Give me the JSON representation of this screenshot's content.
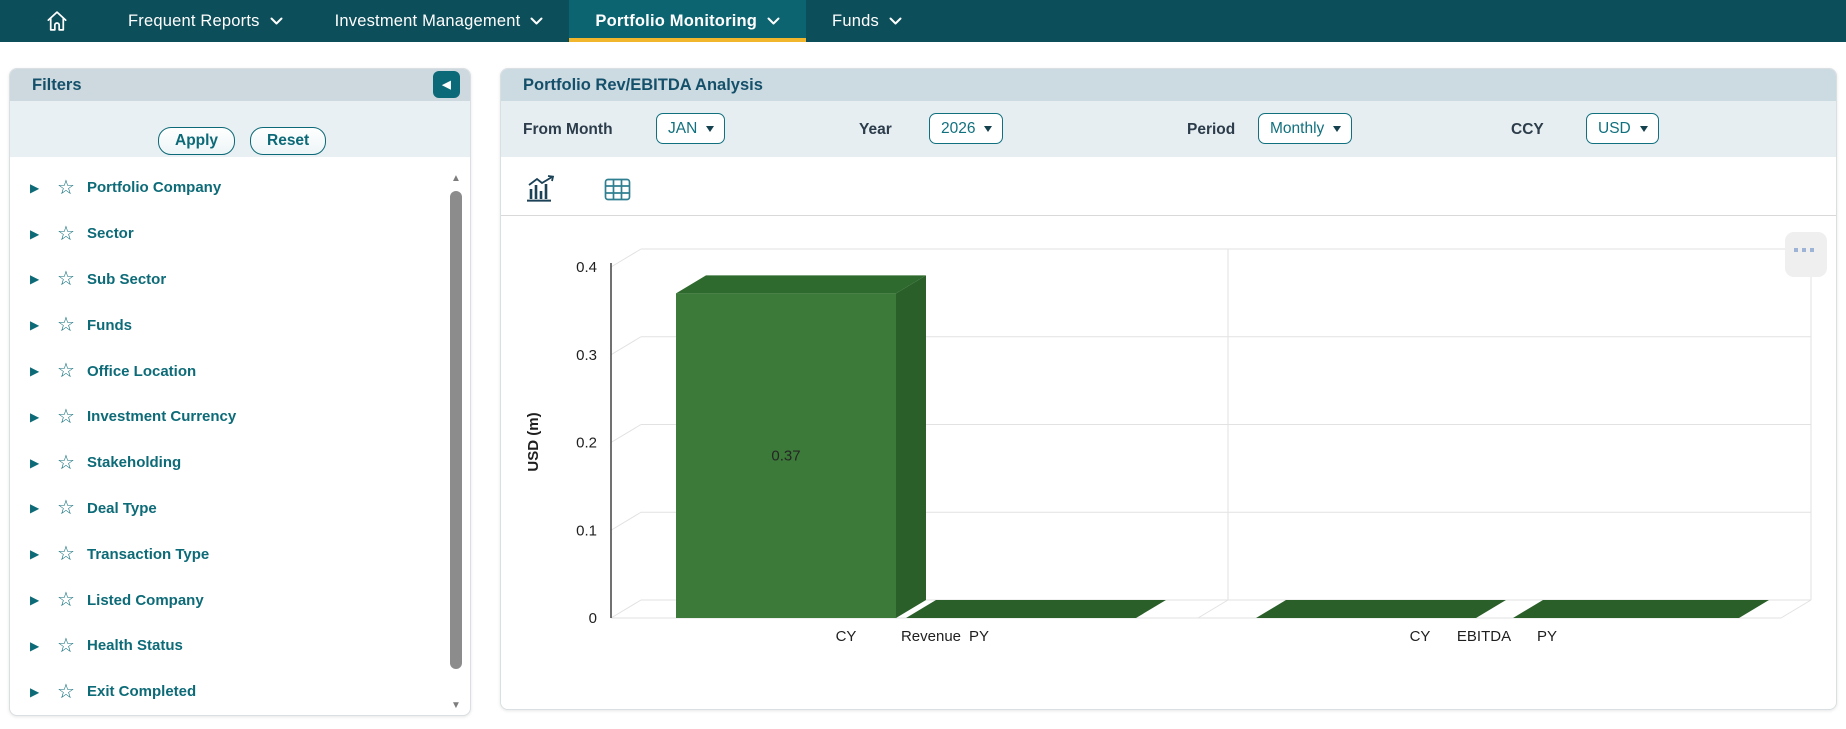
{
  "nav": {
    "items": [
      {
        "label": "Frequent Reports",
        "active": false
      },
      {
        "label": "Investment Management",
        "active": false
      },
      {
        "label": "Portfolio Monitoring",
        "active": true
      },
      {
        "label": "Funds",
        "active": false
      }
    ],
    "colors": {
      "bar_bg": "#0c4e5a",
      "active_bg": "#0c6471",
      "active_underline": "#f2b62c"
    }
  },
  "filters_panel": {
    "title": "Filters",
    "apply_label": "Apply",
    "reset_label": "Reset",
    "items": [
      "Portfolio Company",
      "Sector",
      "Sub Sector",
      "Funds",
      "Office Location",
      "Investment Currency",
      "Stakeholding",
      "Deal Type",
      "Transaction Type",
      "Listed Company",
      "Health Status",
      "Exit Completed"
    ]
  },
  "main": {
    "title": "Portfolio Rev/EBITDA Analysis",
    "controls": [
      {
        "label": "From Month",
        "value": "JAN"
      },
      {
        "label": "Year",
        "value": "2026"
      },
      {
        "label": "Period",
        "value": "Monthly"
      },
      {
        "label": "CCY",
        "value": "USD"
      }
    ],
    "view_toggle": {
      "chart_icon": "bar-chart-with-trend",
      "table_icon": "data-grid",
      "active": "chart"
    }
  },
  "chart_data": {
    "type": "bar",
    "style": "3d-column",
    "title": "",
    "ylabel": "USD (m)",
    "ylim": [
      0,
      0.4
    ],
    "yticks": [
      0,
      0.1,
      0.2,
      0.3,
      0.4
    ],
    "grid": true,
    "legend": "none",
    "groups": [
      {
        "name": "Revenue",
        "categories": [
          "CY",
          "PY"
        ],
        "values": [
          0.37,
          0
        ],
        "value_labels": [
          "0.37",
          null
        ]
      },
      {
        "name": "EBITDA",
        "categories": [
          "CY",
          "PY"
        ],
        "values": [
          0,
          0
        ],
        "value_labels": [
          null,
          null
        ]
      }
    ],
    "colors": {
      "front": "#3c7a39",
      "top": "#2e6a2d",
      "side": "#2a5f29",
      "flat": "#2b5f2a"
    }
  },
  "accent": {
    "teal": "#0d6b78",
    "header_bg": "#cdd9de",
    "controls_bg": "#e6eef2"
  },
  "icons": {
    "expand_triangle": "▶",
    "star": "☆",
    "collapse_left": "◀",
    "scroll_up": "▲",
    "scroll_down": "▼"
  }
}
